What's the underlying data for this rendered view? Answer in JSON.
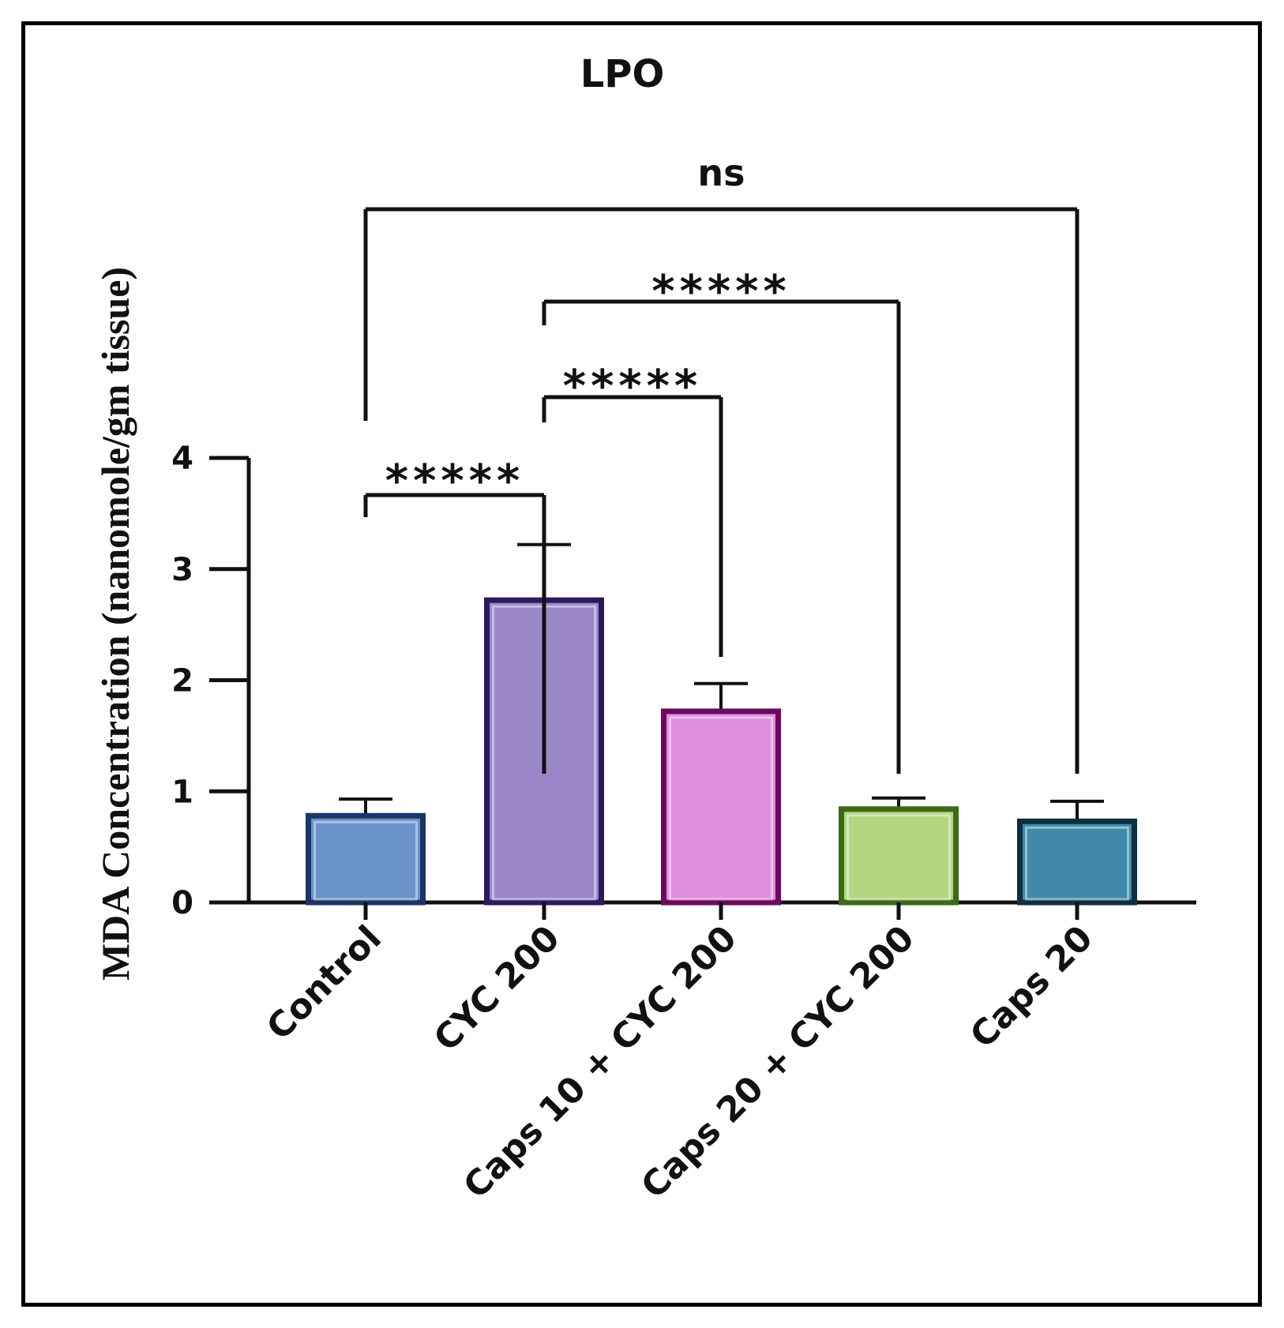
{
  "chart_data": {
    "type": "bar",
    "title": "LPO",
    "xlabel": "",
    "ylabel": "MDA Concentration (nanomole/gm tissue)",
    "ylim": [
      0,
      4
    ],
    "yticks": [
      0,
      1,
      2,
      3,
      4
    ],
    "categories": [
      "Control",
      "CYC 200",
      "Caps 10 + CYC 200",
      "Caps 20 + CYC 200",
      "Caps 20"
    ],
    "values": [
      0.78,
      2.72,
      1.72,
      0.84,
      0.73
    ],
    "errors": [
      0.15,
      0.5,
      0.25,
      0.1,
      0.18
    ],
    "colors": {
      "fill": [
        "#6a93c9",
        "#9a88c9",
        "#e08ee0",
        "#b5d680",
        "#3f8aa8"
      ],
      "edge": [
        "#1b3566",
        "#2b1a5e",
        "#6a0a5e",
        "#3a6b14",
        "#0f2e3f"
      ]
    },
    "comparisons": [
      {
        "from": "Control",
        "to": "CYC 200",
        "label": "*****"
      },
      {
        "from": "CYC 200",
        "to": "Caps 10 + CYC 200",
        "label": "*****"
      },
      {
        "from": "CYC 200",
        "to": "Caps 20 + CYC 200",
        "label": "*****"
      },
      {
        "from": "Control",
        "to": "Caps 20",
        "label": "ns"
      }
    ],
    "grid": false,
    "legend": "none"
  }
}
